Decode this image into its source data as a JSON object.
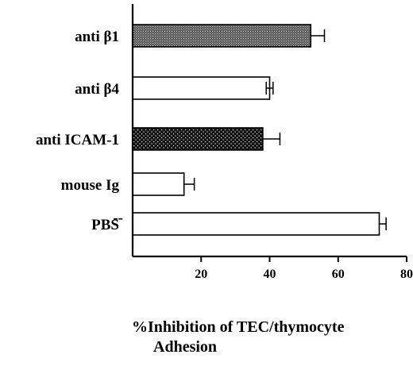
{
  "chart_data": {
    "type": "bar",
    "orientation": "horizontal",
    "categories": [
      "anti β1",
      "anti β4",
      "anti ICAM-1",
      "mouse Ig",
      "PBS"
    ],
    "category_suffix": {
      "PBS": "--"
    },
    "values": [
      52,
      40,
      38,
      15,
      72
    ],
    "errors": [
      4,
      1,
      5,
      3,
      2
    ],
    "error_side": [
      "plus",
      "both",
      "plus",
      "plus",
      "plus"
    ],
    "fills": [
      "stippled-gray",
      "white",
      "stippled-black",
      "white",
      "white"
    ],
    "xlim": [
      0,
      80
    ],
    "xticks": [
      20,
      40,
      60,
      80
    ],
    "xlabel_line1": "%Inhibition of TEC/thymocyte",
    "xlabel_line2": "Adhesion",
    "grid": false,
    "legend": "none"
  },
  "colors": {
    "axis": "#000000",
    "bar_outline": "#000000",
    "white_fill": "#ffffff",
    "gray_fill": "#6e6e6e",
    "black_fill": "#111111"
  }
}
